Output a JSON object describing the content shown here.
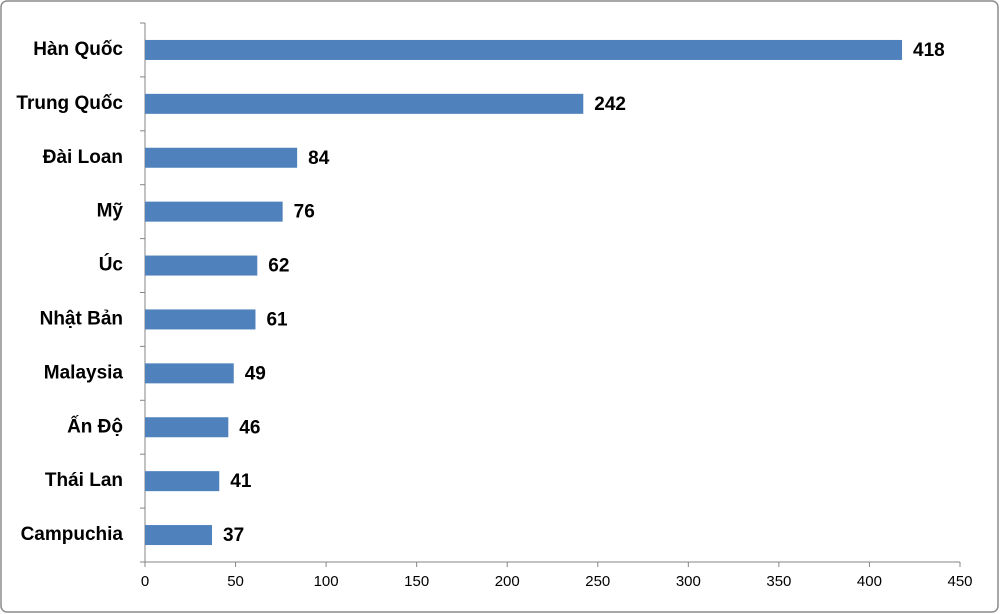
{
  "chart_data": {
    "type": "bar",
    "orientation": "horizontal",
    "categories": [
      "Hàn Quốc",
      "Trung Quốc",
      "Đài Loan",
      "Mỹ",
      "Úc",
      "Nhật Bản",
      "Malaysia",
      "Ấn Độ",
      "Thái Lan",
      "Campuchia"
    ],
    "values": [
      418,
      242,
      84,
      76,
      62,
      61,
      49,
      46,
      41,
      37
    ],
    "color": "#4f81bd",
    "xlim": [
      0,
      450
    ],
    "xticks": [
      0,
      50,
      100,
      150,
      200,
      250,
      300,
      350,
      400,
      450
    ],
    "grid": false
  }
}
